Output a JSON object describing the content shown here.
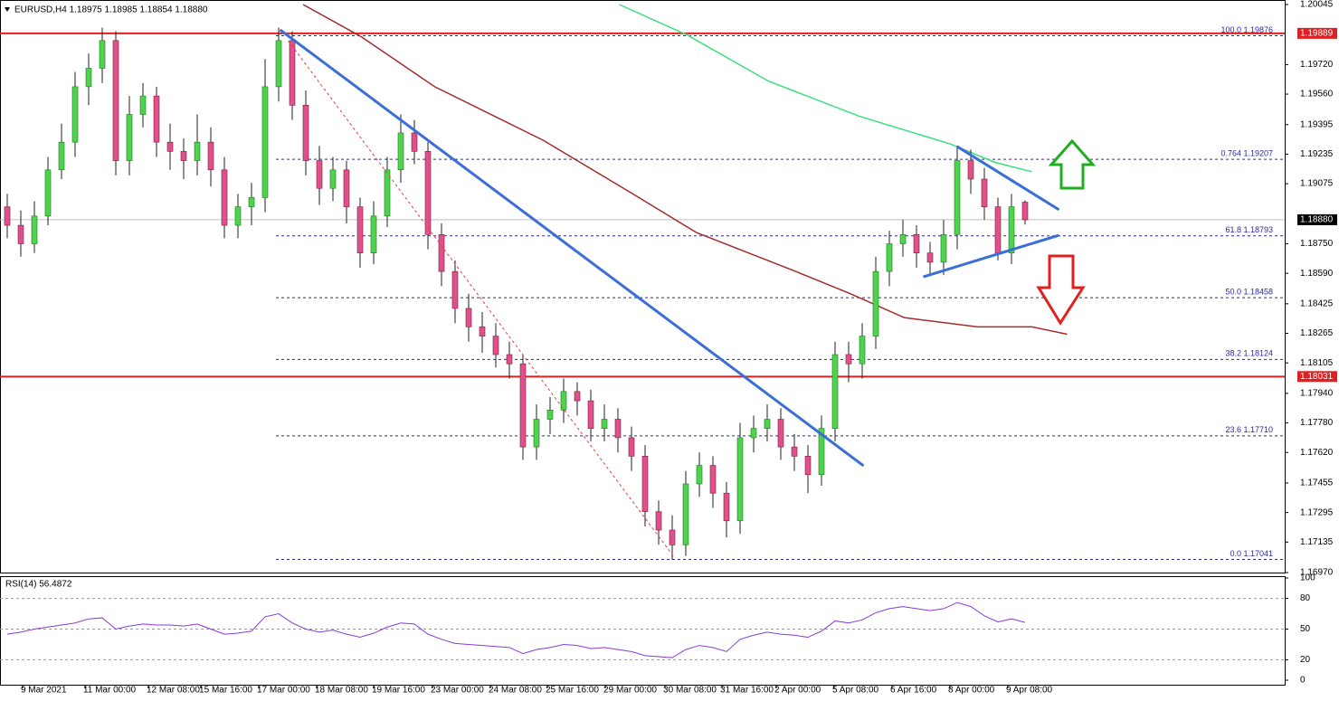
{
  "chart_data": {
    "type": "candlestick",
    "header": "EURUSD,H4  1.18975 1.18985 1.18854 1.18880",
    "bull_color": "#4fd34f",
    "bear_color": "#e0508a",
    "xlim": [
      -0.5333,
      94.1333
    ],
    "ylim": [
      1.1697,
      1.20045
    ],
    "xticks": [
      {
        "value": 1.13,
        "label": "9 Mar 2021"
      },
      {
        "value": 5.73,
        "label": "11 Mar 00:00"
      },
      {
        "value": 10.4,
        "label": "12 Mar 08:00"
      },
      {
        "value": 14.27,
        "label": "15 Mar 16:00"
      },
      {
        "value": 18.53,
        "label": "17 Mar 00:00"
      },
      {
        "value": 22.8,
        "label": "18 Mar 08:00"
      },
      {
        "value": 27,
        "label": "19 Mar 16:00"
      },
      {
        "value": 31.33,
        "label": "23 Mar 00:00"
      },
      {
        "value": 35.6,
        "label": "24 Mar 08:00"
      },
      {
        "value": 39.8,
        "label": "25 Mar 16:00"
      },
      {
        "value": 44.07,
        "label": "29 Mar 00:00"
      },
      {
        "value": 48.47,
        "label": "30 Mar 08:00"
      },
      {
        "value": 52.67,
        "label": "31 Mar 16:00"
      },
      {
        "value": 56.67,
        "label": "2 Apr 00:00"
      },
      {
        "value": 60.93,
        "label": "5 Apr 08:00"
      },
      {
        "value": 65.2,
        "label": "6 Apr 16:00"
      },
      {
        "value": 69.47,
        "label": "8 Apr 00:00"
      },
      {
        "value": 73.73,
        "label": "9 Apr 08:00"
      }
    ],
    "yticks": [
      1.20045,
      {
        "value": 1.1972,
        "label": "1.19720"
      },
      {
        "value": 1.1956,
        "label": "1.19560"
      },
      1.19395,
      1.19235,
      1.19075,
      {
        "value": 1.1875,
        "label": "1.18750"
      },
      {
        "value": 1.1859,
        "label": "1.18590"
      },
      1.18425,
      1.18265,
      1.18105,
      {
        "value": 1.1794,
        "label": "1.17940"
      },
      {
        "value": 1.1778,
        "label": "1.17780"
      },
      {
        "value": 1.1762,
        "label": "1.17620"
      },
      1.17455,
      1.17295,
      1.17135,
      {
        "value": 1.1697,
        "label": "1.16970"
      }
    ],
    "candles": [
      [
        1.1895,
        1.1902,
        1.1878,
        1.1885
      ],
      [
        1.1885,
        1.1893,
        1.1868,
        1.1875
      ],
      [
        1.1875,
        1.1898,
        1.187,
        1.189
      ],
      [
        1.189,
        1.1922,
        1.1885,
        1.1915
      ],
      [
        1.1915,
        1.194,
        1.191,
        1.193
      ],
      [
        1.193,
        1.1968,
        1.1922,
        1.196
      ],
      [
        1.196,
        1.1978,
        1.195,
        1.197
      ],
      [
        1.197,
        1.1992,
        1.1962,
        1.1985
      ],
      [
        1.1985,
        1.199,
        1.1912,
        1.192
      ],
      [
        1.192,
        1.1955,
        1.1912,
        1.1945
      ],
      [
        1.1945,
        1.1962,
        1.1938,
        1.1955
      ],
      [
        1.1955,
        1.196,
        1.1922,
        1.193
      ],
      [
        1.193,
        1.194,
        1.1915,
        1.1925
      ],
      [
        1.1925,
        1.1932,
        1.191,
        1.192
      ],
      [
        1.192,
        1.1945,
        1.1912,
        1.193
      ],
      [
        1.193,
        1.1938,
        1.1906,
        1.1915
      ],
      [
        1.1915,
        1.1922,
        1.1878,
        1.1885
      ],
      [
        1.1885,
        1.1902,
        1.1878,
        1.1895
      ],
      [
        1.1895,
        1.1908,
        1.1885,
        1.19
      ],
      [
        1.19,
        1.1975,
        1.1892,
        1.196
      ],
      [
        1.196,
        1.1992,
        1.1952,
        1.1985
      ],
      [
        1.1985,
        1.199,
        1.1942,
        1.195
      ],
      [
        1.195,
        1.1958,
        1.1912,
        1.192
      ],
      [
        1.192,
        1.1928,
        1.1896,
        1.1905
      ],
      [
        1.1905,
        1.1922,
        1.1898,
        1.1915
      ],
      [
        1.1915,
        1.192,
        1.1886,
        1.1895
      ],
      [
        1.1895,
        1.19,
        1.1862,
        1.187
      ],
      [
        1.187,
        1.1898,
        1.1864,
        1.189
      ],
      [
        1.189,
        1.1922,
        1.1884,
        1.1915
      ],
      [
        1.1915,
        1.1945,
        1.1908,
        1.1935
      ],
      [
        1.1935,
        1.1942,
        1.1918,
        1.1925
      ],
      [
        1.1925,
        1.193,
        1.1872,
        1.188
      ],
      [
        1.188,
        1.1886,
        1.1852,
        1.186
      ],
      [
        1.186,
        1.1866,
        1.1832,
        1.184
      ],
      [
        1.184,
        1.1848,
        1.1822,
        1.183
      ],
      [
        1.183,
        1.1838,
        1.1816,
        1.1825
      ],
      [
        1.1825,
        1.1832,
        1.1808,
        1.1815
      ],
      [
        1.1815,
        1.1822,
        1.1802,
        1.181
      ],
      [
        1.181,
        1.1815,
        1.1758,
        1.1765
      ],
      [
        1.1765,
        1.1788,
        1.1758,
        1.178
      ],
      [
        1.178,
        1.1792,
        1.1772,
        1.1785
      ],
      [
        1.1785,
        1.1802,
        1.1778,
        1.1795
      ],
      [
        1.1795,
        1.18,
        1.1782,
        1.179
      ],
      [
        1.179,
        1.1796,
        1.1768,
        1.1775
      ],
      [
        1.1775,
        1.1788,
        1.1768,
        1.178
      ],
      [
        1.178,
        1.1786,
        1.1762,
        1.177
      ],
      [
        1.177,
        1.1776,
        1.1752,
        1.176
      ],
      [
        1.176,
        1.1766,
        1.1722,
        1.173
      ],
      [
        1.173,
        1.1736,
        1.1712,
        1.172
      ],
      [
        1.172,
        1.1728,
        1.1704,
        1.1712
      ],
      [
        1.1712,
        1.1752,
        1.1706,
        1.1745
      ],
      [
        1.1745,
        1.1762,
        1.1738,
        1.1755
      ],
      [
        1.1755,
        1.176,
        1.1732,
        1.174
      ],
      [
        1.174,
        1.1746,
        1.1716,
        1.1725
      ],
      [
        1.1725,
        1.1778,
        1.1718,
        1.177
      ],
      [
        1.177,
        1.1782,
        1.1762,
        1.1775
      ],
      [
        1.1775,
        1.1788,
        1.1768,
        1.178
      ],
      [
        1.178,
        1.1786,
        1.1758,
        1.1765
      ],
      [
        1.1765,
        1.1772,
        1.1752,
        1.176
      ],
      [
        1.176,
        1.1766,
        1.174,
        1.175
      ],
      [
        1.175,
        1.1782,
        1.1744,
        1.1775
      ],
      [
        1.1775,
        1.1822,
        1.1768,
        1.1815
      ],
      [
        1.1815,
        1.1822,
        1.18,
        1.181
      ],
      [
        1.181,
        1.1832,
        1.1802,
        1.1825
      ],
      [
        1.1825,
        1.1868,
        1.1818,
        1.186
      ],
      [
        1.186,
        1.1882,
        1.1852,
        1.1875
      ],
      [
        1.1875,
        1.1888,
        1.1868,
        1.188
      ],
      [
        1.188,
        1.1885,
        1.1862,
        1.187
      ],
      [
        1.187,
        1.1876,
        1.1858,
        1.1865
      ],
      [
        1.1865,
        1.1888,
        1.1858,
        1.188
      ],
      [
        1.188,
        1.1928,
        1.1872,
        1.192
      ],
      [
        1.192,
        1.1926,
        1.1902,
        1.191
      ],
      [
        1.191,
        1.1916,
        1.1888,
        1.1895
      ],
      [
        1.1895,
        1.19,
        1.1866,
        1.187
      ],
      [
        1.187,
        1.1902,
        1.1864,
        1.1895
      ],
      [
        1.18975,
        1.18985,
        1.18854,
        1.1888
      ]
    ],
    "hlines": [
      {
        "value": 1.19889,
        "label": "1.19889",
        "color": "#e02020"
      },
      {
        "value": 1.18031,
        "label": "1.18031",
        "color": "#e02020"
      }
    ],
    "last_price": {
      "value": 1.1888,
      "label": "1.18880"
    },
    "fib_color": "#2a2aa0",
    "fib_levels": [
      {
        "value": 1.19876,
        "label": "100.0 1.19876"
      },
      {
        "value": 1.19207,
        "label": "0.764 1.19207"
      },
      {
        "value": 1.18793,
        "label": "61.8 1.18793"
      },
      {
        "value": 1.18458,
        "label": "50.0 1.18458"
      },
      {
        "value": 1.18124,
        "label": "38.2 1.18124"
      },
      {
        "value": 1.1771,
        "label": "23.6 1.17710"
      },
      {
        "value": 1.17041,
        "label": "0.0 1.17041"
      }
    ],
    "trendlines": [
      {
        "x": [
          20.1,
          63.1
        ],
        "y": [
          1.19908,
          1.17548
        ],
        "color": "#3a6fd8",
        "dash": false
      },
      {
        "x": [
          70,
          77.5
        ],
        "y": [
          1.19276,
          1.18934
        ],
        "color": "#3a6fd8",
        "dash": false
      },
      {
        "x": [
          67.5,
          77.5
        ],
        "y": [
          1.18571,
          1.18796
        ],
        "color": "#3a6fd8",
        "dash": false
      },
      {
        "x": [
          20.7,
          49.1
        ],
        "y": [
          1.19849,
          1.17058
        ],
        "color": "#e04040",
        "dash": true
      }
    ],
    "ma": [
      {
        "color": "#a52a2a",
        "x": [
          21.8,
          26.1,
          31.5,
          39.5,
          46.1,
          50.8,
          58.1,
          62.1,
          66.1,
          71.5,
          75.5,
          78.1
        ],
        "y": [
          1.20045,
          1.1987,
          1.196,
          1.1931,
          1.1902,
          1.1881,
          1.186,
          1.1848,
          1.1835,
          1.183,
          1.183,
          1.1826
        ]
      },
      {
        "color": "#3ae07a",
        "x": [
          45.1,
          50.1,
          56.1,
          62.8,
          69.5,
          72.8,
          75.5
        ],
        "y": [
          1.20045,
          1.1988,
          1.1963,
          1.1944,
          1.1929,
          1.1919,
          1.1914
        ]
      }
    ],
    "rsi": {
      "label": "RSI(14) 56.4872",
      "color": "#8a3ad8",
      "ylim": [
        0,
        100
      ],
      "yticks": [
        100,
        80,
        50,
        20,
        0
      ],
      "levels": [
        80,
        50,
        20
      ],
      "values": [
        45,
        47,
        50,
        52,
        54,
        56,
        60,
        61,
        50,
        53,
        55,
        54,
        54,
        53,
        55,
        50,
        45,
        46,
        48,
        62,
        65,
        56,
        50,
        47,
        49,
        45,
        42,
        46,
        52,
        56,
        55,
        45,
        40,
        36,
        35,
        34,
        33,
        32,
        26,
        30,
        32,
        35,
        34,
        31,
        32,
        30,
        28,
        24,
        23,
        22,
        30,
        34,
        32,
        28,
        40,
        44,
        47,
        45,
        44,
        42,
        48,
        58,
        56,
        59,
        66,
        70,
        72,
        70,
        68,
        70,
        76,
        72,
        63,
        57,
        60,
        56.4872
      ]
    }
  }
}
